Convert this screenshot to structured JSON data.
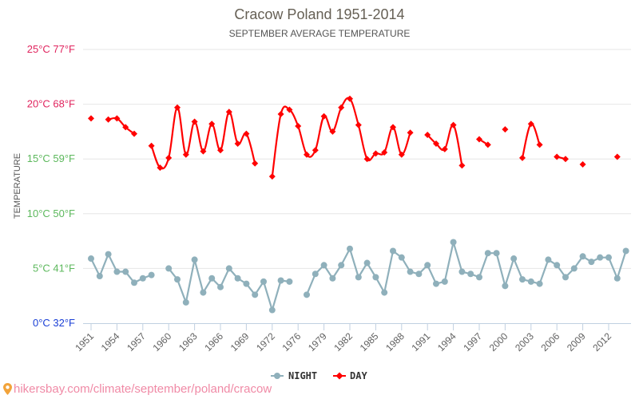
{
  "chart_data": {
    "type": "line",
    "title": "Cracow Poland 1951-2014",
    "subtitle": "SEPTEMBER AVERAGE TEMPERATURE",
    "ylabel": "TEMPERATURE",
    "xlabel": "",
    "ylim": [
      0,
      25
    ],
    "grid": true,
    "legend_position": "bottom-center",
    "y_ticks": [
      {
        "value": 0,
        "label": "0°C 32°F",
        "color": "#1a3fd6"
      },
      {
        "value": 5,
        "label": "5°C 41°F",
        "color": "#5cb85c"
      },
      {
        "value": 10,
        "label": "10°C 50°F",
        "color": "#5cb85c"
      },
      {
        "value": 15,
        "label": "15°C 59°F",
        "color": "#5cb85c"
      },
      {
        "value": 20,
        "label": "20°C 68°F",
        "color": "#e0245e"
      },
      {
        "value": 25,
        "label": "25°C 77°F",
        "color": "#e0245e"
      }
    ],
    "x_tick_labels": [
      "1951",
      "1954",
      "1957",
      "1960",
      "1963",
      "1966",
      "1969",
      "1972",
      "1976",
      "1979",
      "1982",
      "1985",
      "1988",
      "1991",
      "1994",
      "1997",
      "2000",
      "2003",
      "2006",
      "2009",
      "2012"
    ],
    "categories": [
      "1951",
      "1952",
      "1953",
      "1954",
      "1955",
      "1956",
      "1957",
      "1958",
      "1959",
      "1960",
      "1961",
      "1962",
      "1963",
      "1964",
      "1965",
      "1966",
      "1967",
      "1968",
      "1969",
      "1970",
      "1971",
      "1972",
      "1973",
      "1974",
      "1976",
      "1977",
      "1978",
      "1979",
      "1980",
      "1981",
      "1982",
      "1983",
      "1984",
      "1985",
      "1986",
      "1987",
      "1988",
      "1989",
      "1990",
      "1991",
      "1992",
      "1993",
      "1994",
      "1995",
      "1996",
      "1997",
      "1998",
      "1999",
      "2000",
      "2001",
      "2002",
      "2003",
      "2004",
      "2005",
      "2006",
      "2007",
      "2008",
      "2009",
      "2010",
      "2011",
      "2012",
      "2013",
      "2014"
    ],
    "series": [
      {
        "name": "NIGHT",
        "color": "#8fb0bb",
        "marker": "circle",
        "values": [
          5.9,
          4.3,
          6.3,
          4.7,
          4.7,
          3.7,
          4.1,
          4.4,
          null,
          5.0,
          4.0,
          1.9,
          5.8,
          2.8,
          4.1,
          3.3,
          5.0,
          4.1,
          3.6,
          2.6,
          3.8,
          1.2,
          3.9,
          3.8,
          null,
          2.6,
          4.5,
          5.3,
          4.1,
          5.3,
          6.8,
          4.2,
          5.5,
          4.2,
          2.8,
          6.6,
          6.0,
          4.7,
          4.5,
          5.3,
          3.6,
          3.8,
          7.4,
          4.7,
          4.5,
          4.2,
          6.4,
          6.4,
          3.4,
          5.9,
          4.0,
          3.8,
          3.6,
          5.8,
          5.3,
          4.2,
          5.0,
          6.1,
          5.6,
          6.0,
          6.0,
          4.1,
          6.6
        ]
      },
      {
        "name": "DAY",
        "color": "#ff0000",
        "marker": "diamond",
        "values": [
          18.7,
          null,
          18.6,
          18.7,
          17.9,
          17.3,
          null,
          16.2,
          14.2,
          15.1,
          19.7,
          15.4,
          18.4,
          15.7,
          18.2,
          15.8,
          19.3,
          16.4,
          17.3,
          14.6,
          null,
          13.4,
          19.1,
          19.5,
          18.0,
          15.4,
          15.8,
          18.9,
          17.5,
          19.7,
          20.5,
          18.1,
          15.0,
          15.5,
          15.6,
          17.9,
          15.4,
          17.4,
          null,
          17.2,
          16.4,
          15.9,
          18.1,
          14.4,
          null,
          16.8,
          16.3,
          null,
          17.7,
          null,
          15.1,
          18.2,
          16.3,
          null,
          15.2,
          15.0,
          null,
          14.5,
          null,
          null,
          null,
          15.2,
          null
        ]
      }
    ]
  },
  "footer": {
    "url_text": "hikersbay.com/climate/september/poland/cracow",
    "pin_icon": "location-pin-icon"
  }
}
